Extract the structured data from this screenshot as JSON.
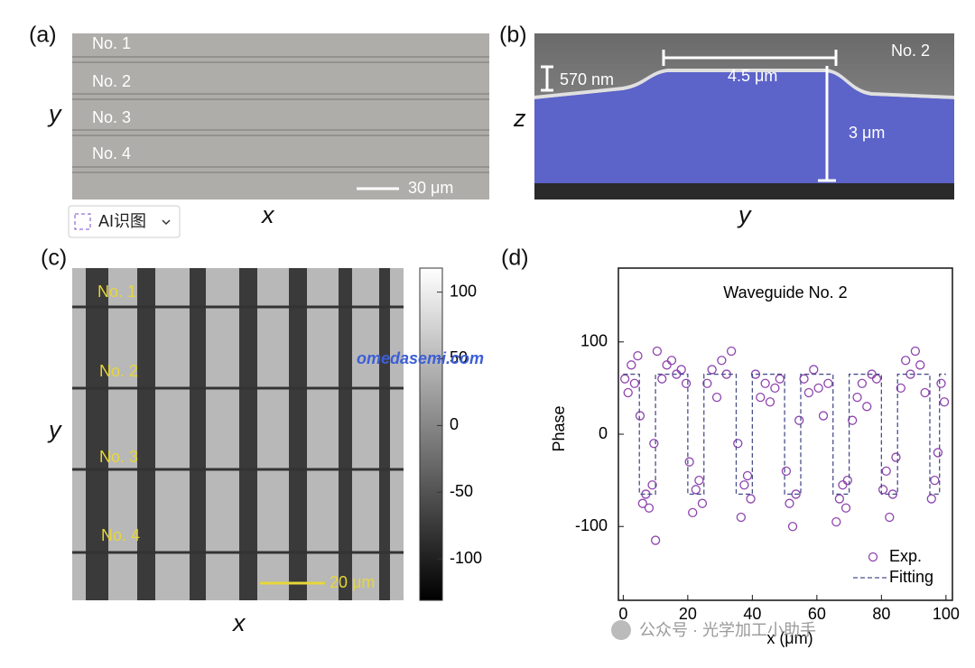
{
  "panel_a": {
    "label": "(a)",
    "waveguides": [
      "No. 1",
      "No. 2",
      "No. 3",
      "No. 4"
    ],
    "scale_bar": "30 μm",
    "x_label": "x",
    "y_label": "y",
    "ai_button": "AI识图"
  },
  "panel_b": {
    "label": "(b)",
    "waveguide": "No. 2",
    "height_label": "570 nm",
    "width_label": "4.5 μm",
    "depth_label": "3 μm",
    "x_label": "y",
    "y_label": "z"
  },
  "panel_c": {
    "label": "(c)",
    "waveguides": [
      "No. 1",
      "No. 2",
      "No. 3",
      "No. 4"
    ],
    "scale_bar": "20 μm",
    "x_label": "x",
    "y_label": "y",
    "colorbar": {
      "lim": [
        -131,
        118
      ],
      "ticks": [
        100,
        50,
        0,
        -50,
        -100
      ]
    }
  },
  "panel_d": {
    "label": "(d)"
  },
  "watermark": "omedasemi.com",
  "footer_watermark": "公众号 · 光学加工小助手",
  "chart_data": {
    "type": "scatter",
    "title": "Waveguide No. 2",
    "xlabel": "x (μm)",
    "ylabel": "Phase",
    "xlim": [
      -1.5,
      102
    ],
    "ylim": [
      -180,
      180
    ],
    "xticks": [
      0,
      20,
      40,
      60,
      80,
      100
    ],
    "yticks": [
      100,
      0,
      -100
    ],
    "legend": "lower right",
    "series": [
      {
        "name": "Exp.",
        "type": "scatter",
        "color": "#8e44ad",
        "x": [
          0.5,
          1.5,
          2.5,
          3.5,
          4.5,
          5.2,
          6,
          7,
          8,
          9,
          9.5,
          10,
          10.5,
          12,
          13.5,
          15,
          16.5,
          18,
          19.5,
          20.5,
          21.5,
          22.5,
          23.5,
          24.5,
          26,
          27.5,
          29,
          30.5,
          32,
          33.5,
          35.5,
          36.5,
          37.5,
          38.5,
          39.5,
          41,
          42.5,
          44,
          45.5,
          47,
          48.5,
          50.5,
          51.5,
          52.5,
          53.5,
          54.5,
          56,
          57.5,
          59,
          60.5,
          62,
          63.5,
          66,
          67,
          68,
          69,
          69.5,
          71,
          72.5,
          74,
          75.5,
          77,
          78.5,
          80.5,
          81.5,
          82.5,
          83.5,
          84.5,
          86,
          87.5,
          89,
          90.5,
          92,
          93.5,
          95.5,
          96.5,
          97.5,
          98.5,
          99.5
        ],
        "values": [
          60,
          45,
          75,
          55,
          85,
          20,
          -75,
          -65,
          -80,
          -55,
          -10,
          -115,
          90,
          60,
          75,
          80,
          65,
          70,
          55,
          -30,
          -85,
          -60,
          -50,
          -75,
          55,
          70,
          40,
          80,
          65,
          90,
          -10,
          -90,
          -55,
          -45,
          -70,
          65,
          40,
          55,
          35,
          50,
          60,
          -40,
          -75,
          -100,
          -65,
          15,
          60,
          45,
          70,
          50,
          20,
          55,
          -95,
          -70,
          -55,
          -80,
          -50,
          15,
          40,
          55,
          30,
          65,
          60,
          -60,
          -40,
          -90,
          -65,
          -25,
          50,
          80,
          65,
          90,
          75,
          45,
          -70,
          -50,
          -20,
          55,
          35
        ]
      },
      {
        "name": "Fitting",
        "type": "line",
        "color": "#4a4f8c",
        "x": [
          0,
          5,
          5,
          10,
          10,
          20,
          20,
          25,
          25,
          35,
          35,
          40,
          40,
          50,
          50,
          55,
          55,
          65,
          65,
          70,
          70,
          80,
          80,
          85,
          85,
          95,
          95,
          98,
          98,
          100
        ],
        "values": [
          65,
          65,
          -65,
          -65,
          65,
          65,
          -65,
          -65,
          65,
          65,
          -65,
          -65,
          65,
          65,
          -65,
          -65,
          65,
          65,
          -65,
          -65,
          65,
          65,
          -65,
          -65,
          65,
          65,
          -65,
          -65,
          65,
          65
        ]
      }
    ]
  }
}
